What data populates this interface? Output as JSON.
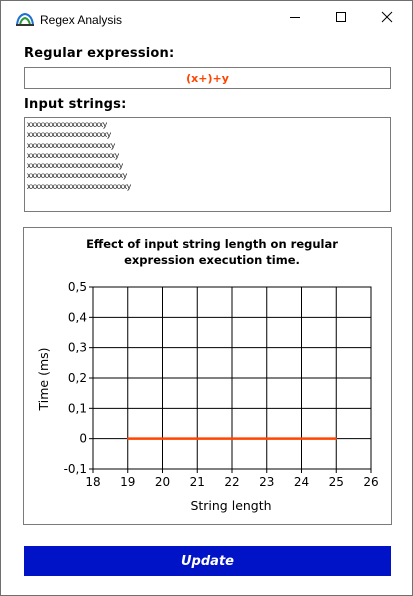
{
  "window": {
    "title": "Regex Analysis"
  },
  "regex": {
    "label": "Regular expression:",
    "value": "(x+)+y"
  },
  "inputs": {
    "label": "Input strings:",
    "lines": [
      "xxxxxxxxxxxxxxxxxxxy",
      "xxxxxxxxxxxxxxxxxxxxy",
      "xxxxxxxxxxxxxxxxxxxxxy",
      "xxxxxxxxxxxxxxxxxxxxxxy",
      "xxxxxxxxxxxxxxxxxxxxxxxy",
      "xxxxxxxxxxxxxxxxxxxxxxxxy",
      "xxxxxxxxxxxxxxxxxxxxxxxxxy"
    ]
  },
  "chart_data": {
    "type": "line",
    "title": "Effect of input string length on regular expression execution time.",
    "title_lines": [
      "Effect of input string length on regular",
      "expression execution time."
    ],
    "xlabel": "String length",
    "ylabel": "Time (ms)",
    "xlim": [
      18,
      26
    ],
    "ylim": [
      -0.1,
      0.5
    ],
    "x_ticks": [
      18,
      19,
      20,
      21,
      22,
      23,
      24,
      25,
      26
    ],
    "y_ticks": [
      -0.1,
      0,
      0.1,
      0.2,
      0.3,
      0.4,
      0.5
    ],
    "x_tick_labels": [
      "18",
      "19",
      "20",
      "21",
      "22",
      "23",
      "24",
      "25",
      "26"
    ],
    "y_tick_labels": [
      "-0,1",
      "0",
      "0,1",
      "0,2",
      "0,3",
      "0,4",
      "0,5"
    ],
    "grid": true,
    "series": [
      {
        "x": [
          19,
          20,
          21,
          22,
          23,
          24,
          25
        ],
        "values": [
          0,
          0,
          0,
          0,
          0,
          0,
          0
        ],
        "color": "#ff4500"
      }
    ]
  },
  "update_button": {
    "label": "Update",
    "color": "#0013c6"
  }
}
